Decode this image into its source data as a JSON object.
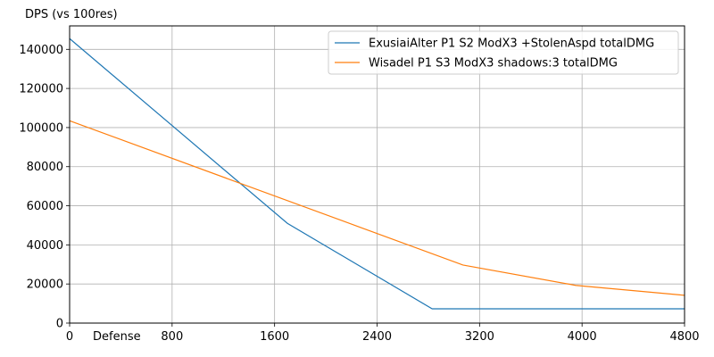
{
  "chart_data": {
    "type": "line",
    "title": "",
    "xlabel": "Defense",
    "ylabel": "DPS (vs 100res)",
    "xlim": [
      0,
      4800
    ],
    "ylim": [
      0,
      152000
    ],
    "x_ticks": [
      0,
      800,
      1600,
      2400,
      3200,
      4000,
      4800
    ],
    "y_ticks": [
      0,
      20000,
      40000,
      60000,
      80000,
      100000,
      120000,
      140000
    ],
    "grid": true,
    "legend_position": "top-right",
    "series": [
      {
        "name": "ExusiaiAlter P1 S2 ModX3 +StolenAspd totalDMG",
        "color": "#1f77b4",
        "x": [
          0,
          1700,
          2830,
          4800
        ],
        "y": [
          145500,
          51000,
          7300,
          7300
        ]
      },
      {
        "name": "Wisadel P1 S3 ModX3 shadows:3 totalDMG",
        "color": "#ff7f0e",
        "x": [
          0,
          3070,
          3950,
          4800
        ],
        "y": [
          103500,
          29700,
          19300,
          14200
        ]
      }
    ]
  }
}
